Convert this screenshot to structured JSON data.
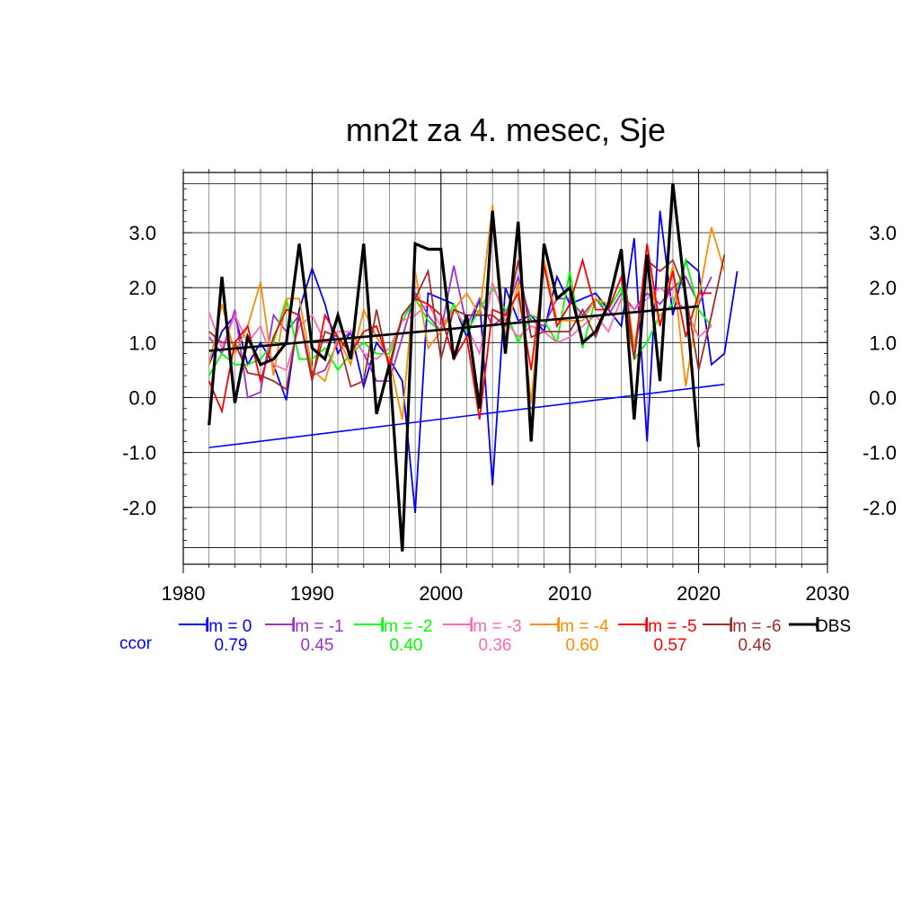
{
  "chart_data": {
    "type": "line",
    "title": "mn2t za 4. mesec, Sje",
    "xlabel": "",
    "ylabel": "",
    "xlim": [
      1980,
      2030
    ],
    "ylim": [
      -2.8,
      3.9
    ],
    "x_ticks": [
      1980,
      1990,
      2000,
      2010,
      2020,
      2030
    ],
    "x_tick_labels": [
      "1980",
      "1990",
      "2000",
      "2010",
      "2020",
      "2030"
    ],
    "y_ticks": [
      -2,
      -1,
      0,
      1,
      2,
      3
    ],
    "y_tick_labels": [
      "-2.0",
      "-1.0",
      "0.0",
      "1.0",
      "2.0",
      "3.0"
    ],
    "grid": true,
    "legend_position": "below",
    "ccor_label": "ccor",
    "series": [
      {
        "name": "lm = 0",
        "color": "#0000ff",
        "ccor": "0.79",
        "x_start": 1982,
        "values": [
          0.6,
          1.2,
          1.5,
          0.6,
          1.0,
          0.6,
          -0.05,
          1.6,
          2.35,
          1.7,
          0.8,
          1.2,
          0.2,
          1.0,
          0.7,
          0.3,
          -2.1,
          1.9,
          1.8,
          1.7,
          1.1,
          1.8,
          -1.6,
          2.0,
          1.4,
          1.5,
          1.2,
          2.2,
          1.7,
          1.8,
          1.9,
          1.6,
          1.3,
          2.9,
          -0.8,
          3.4,
          1.5,
          2.5,
          2.3,
          0.6,
          0.8,
          2.3
        ],
        "trend": {
          "x": [
            1982,
            2022
          ],
          "y": [
            -0.91,
            0.24
          ]
        }
      },
      {
        "name": "lm = -1",
        "color": "#9932cc",
        "ccor": "0.45",
        "x_start": 1982,
        "values": [
          1.1,
          0.8,
          1.6,
          0.0,
          0.1,
          1.5,
          1.2,
          1.5,
          0.4,
          0.5,
          1.0,
          1.2,
          0.8,
          0.3,
          0.3,
          1.1,
          1.9,
          1.5,
          1.2,
          2.4,
          1.3,
          1.8,
          1.3,
          1.5,
          2.2,
          1.4,
          1.3,
          1.8,
          1.8,
          1.5,
          1.8,
          1.5,
          1.9,
          1.6,
          1.9,
          1.7,
          2.0,
          2.2,
          1.7,
          2.2
        ]
      },
      {
        "name": "lm = -2",
        "color": "#00ff00",
        "ccor": "0.40",
        "x_start": 1982,
        "values": [
          0.4,
          0.8,
          0.6,
          0.6,
          0.7,
          1.0,
          1.8,
          0.7,
          0.7,
          0.9,
          0.5,
          0.8,
          1.0,
          0.8,
          0.8,
          1.4,
          1.8,
          1.4,
          1.2,
          1.7,
          1.2,
          1.6,
          2.0,
          1.6,
          1.0,
          1.5,
          1.4,
          1.0,
          2.3,
          0.9,
          1.8,
          1.6,
          2.0,
          0.7,
          1.0,
          1.5,
          1.7,
          2.5,
          1.6,
          1.3
        ]
      },
      {
        "name": "lm = -3",
        "color": "#ff69b4",
        "ccor": "0.36",
        "x_start": 1982,
        "values": [
          1.55,
          0.9,
          1.5,
          1.0,
          1.3,
          0.6,
          0.5,
          1.3,
          1.5,
          1.0,
          1.2,
          1.2,
          0.8,
          0.7,
          0.9,
          1.4,
          1.5,
          1.7,
          1.3,
          1.6,
          1.3,
          0.8,
          2.1,
          1.4,
          1.1,
          1.3,
          1.2,
          1.0,
          1.1,
          1.3,
          1.5,
          1.2,
          1.8,
          1.6,
          1.8,
          2.0,
          1.8,
          1.6,
          1.1,
          1.3
        ]
      },
      {
        "name": "lm = -4",
        "color": "#ff8c00",
        "ccor": "0.60",
        "x_start": 1982,
        "values": [
          0.6,
          1.7,
          0.8,
          1.3,
          2.1,
          0.4,
          1.8,
          1.8,
          0.5,
          0.3,
          1.1,
          0.6,
          1.6,
          1.1,
          0.7,
          -0.4,
          2.3,
          0.9,
          1.2,
          1.6,
          1.9,
          1.5,
          3.5,
          1.1,
          2.1,
          -0.1,
          2.5,
          1.4,
          1.4,
          1.4,
          1.8,
          1.7,
          2.6,
          0.9,
          2.4,
          1.3,
          2.4,
          0.2,
          1.8,
          3.1,
          2.3
        ]
      },
      {
        "name": "lm = -5",
        "color": "#ff0000",
        "ccor": "0.57",
        "x_start": 1982,
        "values": [
          0.3,
          -0.25,
          1.0,
          1.3,
          0.3,
          1.1,
          1.6,
          1.5,
          0.3,
          1.5,
          1.1,
          0.8,
          1.2,
          1.3,
          0.6,
          1.5,
          1.8,
          1.7,
          1.5,
          0.7,
          1.1,
          -0.4,
          1.6,
          1.5,
          1.9,
          0.5,
          2.4,
          1.3,
          1.7,
          2.5,
          1.6,
          1.6,
          2.2,
          0.7,
          2.8,
          1.3,
          2.3,
          1.1,
          1.9,
          1.9
        ]
      },
      {
        "name": "lm = -6",
        "color": "#a52a2a",
        "ccor": "0.46",
        "x_start": 1982,
        "values": [
          1.2,
          1.0,
          1.0,
          0.45,
          0.4,
          0.3,
          0.15,
          1.5,
          0.35,
          1.2,
          1.1,
          0.2,
          0.3,
          1.6,
          0.5,
          1.5,
          1.8,
          2.3,
          0.7,
          1.6,
          1.5,
          1.5,
          1.5,
          1.3,
          2.5,
          1.1,
          1.2,
          1.2,
          1.2,
          1.6,
          1.1,
          1.7,
          2.7,
          0.7,
          2.5,
          2.3,
          2.5,
          1.9,
          0.5,
          1.5,
          2.6
        ]
      },
      {
        "name": "OBS",
        "color": "#000000",
        "ccor": "",
        "x_start": 1982,
        "values": [
          -0.5,
          2.2,
          -0.1,
          1.1,
          0.6,
          0.7,
          1.0,
          2.8,
          0.9,
          0.7,
          1.5,
          0.7,
          2.8,
          -0.3,
          0.6,
          -2.8,
          2.8,
          2.7,
          2.7,
          0.7,
          1.5,
          -0.2,
          3.4,
          0.8,
          3.2,
          -0.8,
          2.8,
          1.8,
          2.0,
          1.0,
          1.2,
          1.7,
          2.7,
          -0.4,
          2.6,
          0.3,
          3.9,
          1.8,
          -0.9
        ],
        "trend": {
          "x": [
            1982,
            2020
          ],
          "y": [
            0.85,
            1.66
          ]
        }
      }
    ]
  }
}
